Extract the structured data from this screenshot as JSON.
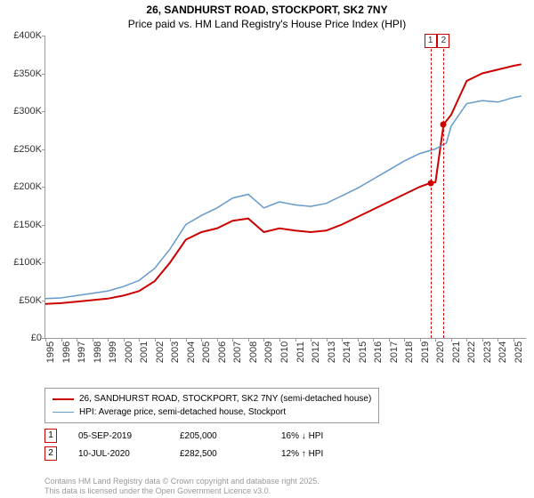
{
  "title": "26, SANDHURST ROAD, STOCKPORT, SK2 7NY",
  "subtitle": "Price paid vs. HM Land Registry's House Price Index (HPI)",
  "chart": {
    "type": "line",
    "xlim": [
      1995,
      2025.8
    ],
    "ylim": [
      0,
      400000
    ],
    "ytick_step": 50000,
    "yticks": [
      "£0",
      "£50K",
      "£100K",
      "£150K",
      "£200K",
      "£250K",
      "£300K",
      "£350K",
      "£400K"
    ],
    "xticks": [
      1995,
      1996,
      1997,
      1998,
      1999,
      2000,
      2001,
      2002,
      2003,
      2004,
      2005,
      2006,
      2007,
      2008,
      2009,
      2010,
      2011,
      2012,
      2013,
      2014,
      2015,
      2016,
      2017,
      2018,
      2019,
      2020,
      2021,
      2022,
      2023,
      2024,
      2025
    ],
    "background_color": "#ffffff",
    "axis_color": "#999999",
    "series": [
      {
        "name": "price_paid",
        "label": "26, SANDHURST ROAD, STOCKPORT, SK2 7NY (semi-detached house)",
        "color": "#cc0000",
        "line_width": 2,
        "points": [
          [
            1995,
            45000
          ],
          [
            1996,
            46000
          ],
          [
            1997,
            48000
          ],
          [
            1998,
            50000
          ],
          [
            1999,
            52000
          ],
          [
            2000,
            56000
          ],
          [
            2001,
            62000
          ],
          [
            2002,
            75000
          ],
          [
            2003,
            100000
          ],
          [
            2004,
            130000
          ],
          [
            2005,
            140000
          ],
          [
            2006,
            145000
          ],
          [
            2007,
            155000
          ],
          [
            2008,
            158000
          ],
          [
            2009,
            140000
          ],
          [
            2010,
            145000
          ],
          [
            2011,
            142000
          ],
          [
            2012,
            140000
          ],
          [
            2013,
            142000
          ],
          [
            2014,
            150000
          ],
          [
            2015,
            160000
          ],
          [
            2016,
            170000
          ],
          [
            2017,
            180000
          ],
          [
            2018,
            190000
          ],
          [
            2019,
            200000
          ],
          [
            2019.68,
            205000
          ],
          [
            2020,
            206000
          ],
          [
            2020.52,
            282500
          ],
          [
            2021,
            295000
          ],
          [
            2022,
            340000
          ],
          [
            2023,
            350000
          ],
          [
            2024,
            355000
          ],
          [
            2025,
            360000
          ],
          [
            2025.5,
            362000
          ]
        ]
      },
      {
        "name": "hpi",
        "label": "HPI: Average price, semi-detached house, Stockport",
        "color": "#6699cc",
        "line_width": 1.5,
        "points": [
          [
            1995,
            52000
          ],
          [
            1996,
            53000
          ],
          [
            1997,
            56000
          ],
          [
            1998,
            59000
          ],
          [
            1999,
            62000
          ],
          [
            2000,
            68000
          ],
          [
            2001,
            76000
          ],
          [
            2002,
            92000
          ],
          [
            2003,
            118000
          ],
          [
            2004,
            150000
          ],
          [
            2005,
            162000
          ],
          [
            2006,
            172000
          ],
          [
            2007,
            185000
          ],
          [
            2008,
            190000
          ],
          [
            2009,
            172000
          ],
          [
            2010,
            180000
          ],
          [
            2011,
            176000
          ],
          [
            2012,
            174000
          ],
          [
            2013,
            178000
          ],
          [
            2014,
            188000
          ],
          [
            2015,
            198000
          ],
          [
            2016,
            210000
          ],
          [
            2017,
            222000
          ],
          [
            2018,
            234000
          ],
          [
            2019,
            244000
          ],
          [
            2020,
            250000
          ],
          [
            2020.7,
            258000
          ],
          [
            2021,
            280000
          ],
          [
            2022,
            310000
          ],
          [
            2023,
            314000
          ],
          [
            2024,
            312000
          ],
          [
            2025,
            318000
          ],
          [
            2025.5,
            320000
          ]
        ]
      }
    ],
    "markers": [
      {
        "n": "1",
        "x": 2019.68,
        "y": 205000,
        "color": "#cc0000"
      },
      {
        "n": "2",
        "x": 2020.52,
        "y": 282500,
        "color": "#cc0000"
      }
    ]
  },
  "legend": {
    "items": [
      {
        "color": "#cc0000",
        "width": 2,
        "label": "26, SANDHURST ROAD, STOCKPORT, SK2 7NY (semi-detached house)"
      },
      {
        "color": "#6699cc",
        "width": 1.5,
        "label": "HPI: Average price, semi-detached house, Stockport"
      }
    ]
  },
  "transactions": [
    {
      "n": "1",
      "color": "#cc0000",
      "date": "05-SEP-2019",
      "price": "£205,000",
      "delta": "16% ↓ HPI"
    },
    {
      "n": "2",
      "color": "#cc0000",
      "date": "10-JUL-2020",
      "price": "£282,500",
      "delta": "12% ↑ HPI"
    }
  ],
  "footer": {
    "line1": "Contains HM Land Registry data © Crown copyright and database right 2025.",
    "line2": "This data is licensed under the Open Government Licence v3.0."
  }
}
